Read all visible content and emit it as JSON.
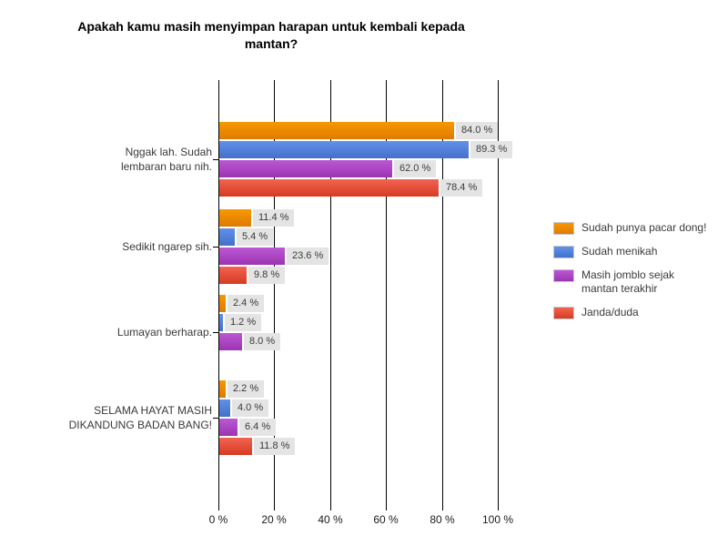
{
  "chart_data": {
    "type": "bar",
    "orientation": "horizontal",
    "title": "Apakah kamu masih menyimpan harapan untuk kembali kepada\nmantan?",
    "categories": [
      "Nggak lah. Sudah\nlembaran baru nih.",
      "Sedikit ngarep sih.",
      "Lumayan berharap.",
      "SELAMA HAYAT MASIH\nDIKANDUNG BADAN BANG!"
    ],
    "series": [
      {
        "name": "Sudah punya pacar dong!",
        "color": "#EE8400",
        "color_light": "#F79800",
        "color_dark": "#DF7A00",
        "values": [
          84.0,
          11.4,
          2.4,
          2.2
        ]
      },
      {
        "name": "Sudah menikah",
        "color": "#4F7CD9",
        "color_light": "#6290E8",
        "color_dark": "#4470CA",
        "values": [
          89.3,
          5.4,
          1.2,
          4.0
        ]
      },
      {
        "name": "Masih jomblo sejak\nmantan terakhir",
        "color": "#AE46C5",
        "color_light": "#BC58D4",
        "color_dark": "#9C34B2",
        "values": [
          62.0,
          23.6,
          8.0,
          6.4
        ]
      },
      {
        "name": "Janda/duda",
        "color": "#E5503A",
        "color_light": "#F26351",
        "color_dark": "#D63B22",
        "values": [
          78.4,
          9.8,
          0.0,
          11.8
        ]
      }
    ],
    "x_ticks": [
      "0 %",
      "20 %",
      "40 %",
      "60 %",
      "80 %",
      "100 %"
    ],
    "xlim": [
      0,
      100
    ],
    "value_label_suffix": " %",
    "value_label_decimals": 1,
    "grid": true,
    "legend_position": "right",
    "gridline_color": "#000000",
    "value_label_bg": "#e4e4e4"
  }
}
